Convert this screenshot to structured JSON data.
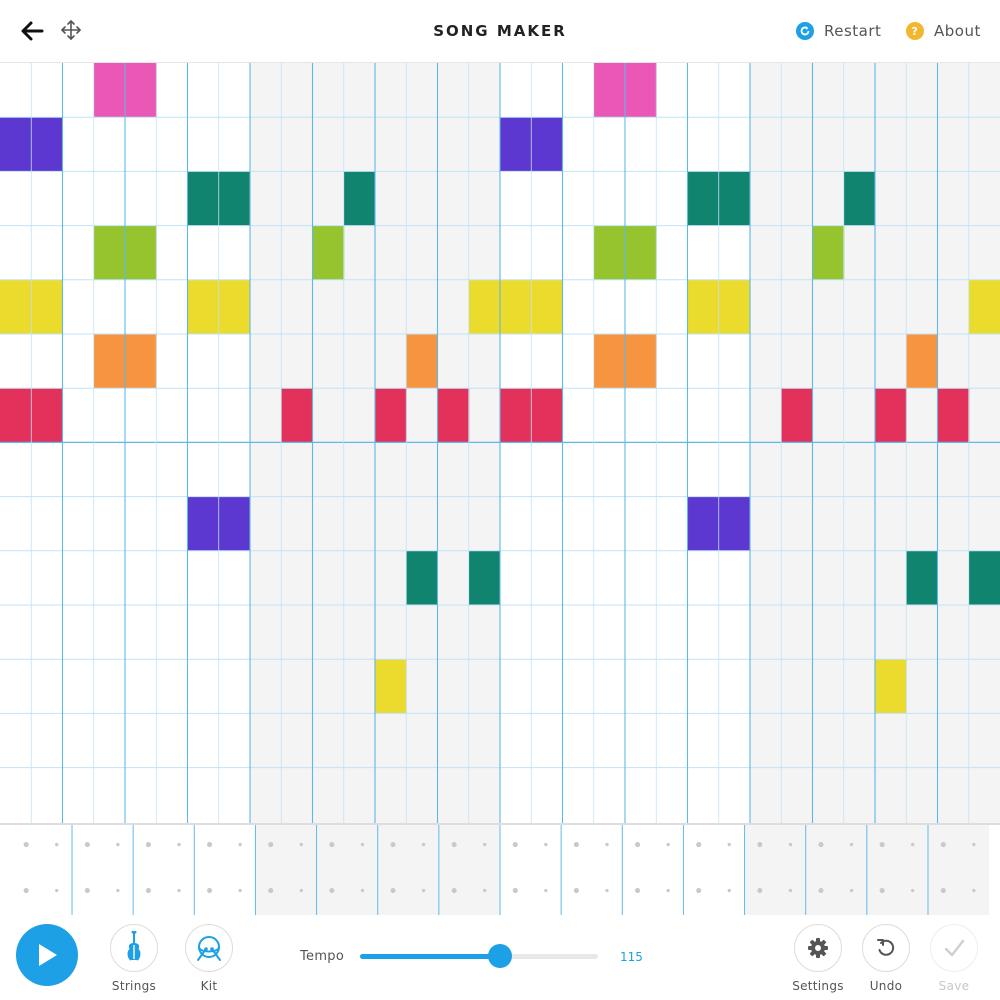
{
  "header": {
    "title": "SONG MAKER",
    "back_icon": "arrow-left-icon",
    "move_icon": "move-arrows-icon",
    "restart_label": "Restart",
    "about_label": "About",
    "about_glyph": "?"
  },
  "grid": {
    "columns": 32,
    "melody_rows": 14,
    "rhythm_rows": 2,
    "beats_per_bar": 8,
    "shaded_bars": [
      1,
      3
    ],
    "notes": [
      {
        "col": 3,
        "row": 0,
        "color": "#ea57b4"
      },
      {
        "col": 4,
        "row": 0,
        "color": "#ea57b4"
      },
      {
        "col": 19,
        "row": 0,
        "color": "#ea57b4"
      },
      {
        "col": 20,
        "row": 0,
        "color": "#ea57b4"
      },
      {
        "col": 0,
        "row": 1,
        "color": "#5c37d0"
      },
      {
        "col": 1,
        "row": 1,
        "color": "#5c37d0"
      },
      {
        "col": 16,
        "row": 1,
        "color": "#5c37d0"
      },
      {
        "col": 17,
        "row": 1,
        "color": "#5c37d0"
      },
      {
        "col": 6,
        "row": 2,
        "color": "#118470"
      },
      {
        "col": 7,
        "row": 2,
        "color": "#118470"
      },
      {
        "col": 11,
        "row": 2,
        "color": "#118470"
      },
      {
        "col": 22,
        "row": 2,
        "color": "#118470"
      },
      {
        "col": 23,
        "row": 2,
        "color": "#118470"
      },
      {
        "col": 27,
        "row": 2,
        "color": "#118470"
      },
      {
        "col": 3,
        "row": 3,
        "color": "#95c42f"
      },
      {
        "col": 4,
        "row": 3,
        "color": "#95c42f"
      },
      {
        "col": 10,
        "row": 3,
        "color": "#95c42f"
      },
      {
        "col": 19,
        "row": 3,
        "color": "#95c42f"
      },
      {
        "col": 20,
        "row": 3,
        "color": "#95c42f"
      },
      {
        "col": 26,
        "row": 3,
        "color": "#95c42f"
      },
      {
        "col": 0,
        "row": 4,
        "color": "#eadb2c"
      },
      {
        "col": 1,
        "row": 4,
        "color": "#eadb2c"
      },
      {
        "col": 6,
        "row": 4,
        "color": "#eadb2c"
      },
      {
        "col": 7,
        "row": 4,
        "color": "#eadb2c"
      },
      {
        "col": 15,
        "row": 4,
        "color": "#eadb2c"
      },
      {
        "col": 16,
        "row": 4,
        "color": "#eadb2c"
      },
      {
        "col": 17,
        "row": 4,
        "color": "#eadb2c"
      },
      {
        "col": 22,
        "row": 4,
        "color": "#eadb2c"
      },
      {
        "col": 23,
        "row": 4,
        "color": "#eadb2c"
      },
      {
        "col": 31,
        "row": 4,
        "color": "#eadb2c"
      },
      {
        "col": 3,
        "row": 5,
        "color": "#f79440"
      },
      {
        "col": 4,
        "row": 5,
        "color": "#f79440"
      },
      {
        "col": 13,
        "row": 5,
        "color": "#f79440"
      },
      {
        "col": 19,
        "row": 5,
        "color": "#f79440"
      },
      {
        "col": 20,
        "row": 5,
        "color": "#f79440"
      },
      {
        "col": 29,
        "row": 5,
        "color": "#f79440"
      },
      {
        "col": 0,
        "row": 6,
        "color": "#e2325b"
      },
      {
        "col": 1,
        "row": 6,
        "color": "#e2325b"
      },
      {
        "col": 9,
        "row": 6,
        "color": "#e2325b"
      },
      {
        "col": 12,
        "row": 6,
        "color": "#e2325b"
      },
      {
        "col": 14,
        "row": 6,
        "color": "#e2325b"
      },
      {
        "col": 16,
        "row": 6,
        "color": "#e2325b"
      },
      {
        "col": 17,
        "row": 6,
        "color": "#e2325b"
      },
      {
        "col": 25,
        "row": 6,
        "color": "#e2325b"
      },
      {
        "col": 28,
        "row": 6,
        "color": "#e2325b"
      },
      {
        "col": 30,
        "row": 6,
        "color": "#e2325b"
      },
      {
        "col": 6,
        "row": 8,
        "color": "#5c37d0"
      },
      {
        "col": 7,
        "row": 8,
        "color": "#5c37d0"
      },
      {
        "col": 22,
        "row": 8,
        "color": "#5c37d0"
      },
      {
        "col": 23,
        "row": 8,
        "color": "#5c37d0"
      },
      {
        "col": 13,
        "row": 9,
        "color": "#118470"
      },
      {
        "col": 15,
        "row": 9,
        "color": "#118470"
      },
      {
        "col": 29,
        "row": 9,
        "color": "#118470"
      },
      {
        "col": 31,
        "row": 9,
        "color": "#118470"
      },
      {
        "col": 12,
        "row": 11,
        "color": "#eadb2c"
      },
      {
        "col": 28,
        "row": 11,
        "color": "#eadb2c"
      }
    ]
  },
  "toolbar": {
    "play_icon": "play-icon",
    "strings_label": "Strings",
    "strings_icon": "violin-icon",
    "kit_label": "Kit",
    "kit_icon": "drum-icon",
    "tempo_label": "Tempo",
    "tempo_value": "115",
    "tempo_fraction": 0.59,
    "settings_label": "Settings",
    "settings_icon": "gear-icon",
    "undo_label": "Undo",
    "undo_icon": "undo-icon",
    "save_label": "Save",
    "save_icon": "checkmark-icon"
  },
  "colors": {
    "accent": "#1ea0e6",
    "grid_line": "#bfe3f7",
    "bar_line": "#5fb8ea",
    "shade": "#f4f4f4",
    "about_dot": "#f2b630"
  }
}
